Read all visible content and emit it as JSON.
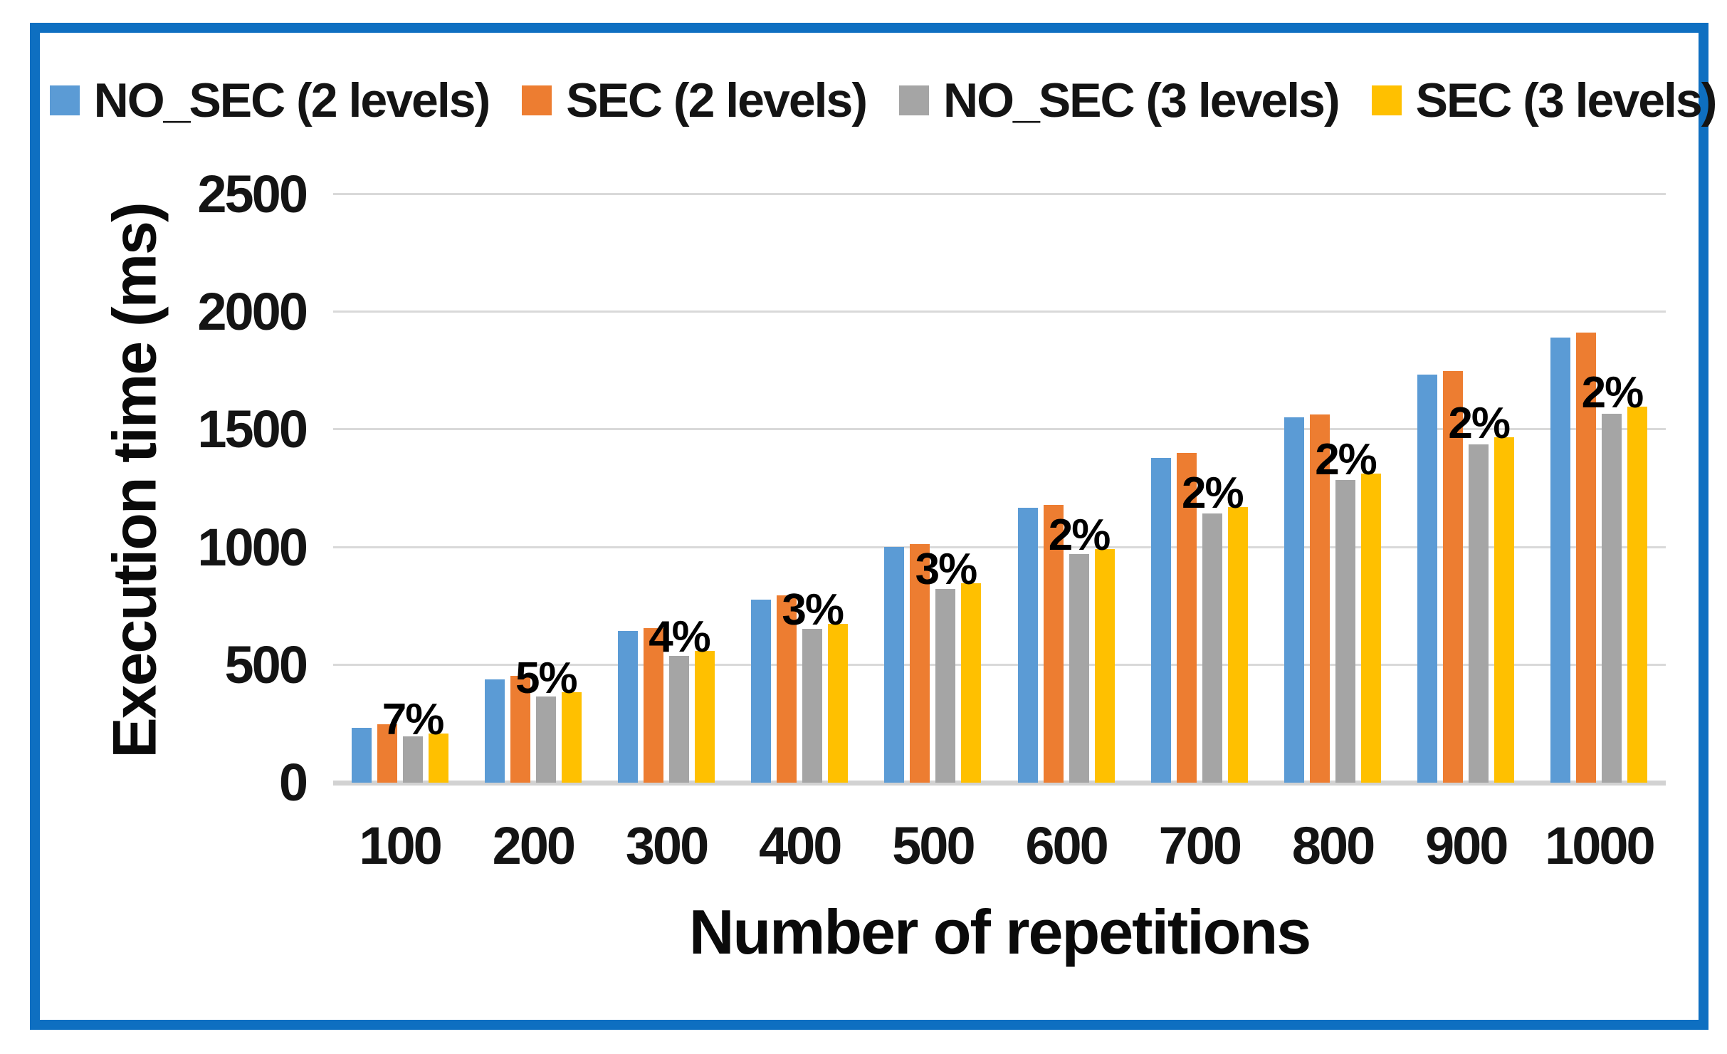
{
  "frame": {
    "border_color": "#0E6FC1"
  },
  "chart_data": {
    "type": "bar",
    "title": "",
    "xlabel": "Number of repetitions",
    "ylabel": "Execution time (ms)",
    "categories": [
      "100",
      "200",
      "300",
      "400",
      "500",
      "600",
      "700",
      "800",
      "900",
      "1000"
    ],
    "series": [
      {
        "name": "NO_SEC (2 levels)",
        "color": "#5B9BD5",
        "values": [
          232,
          440,
          645,
          778,
          1003,
          1168,
          1381,
          1552,
          1733,
          1891
        ]
      },
      {
        "name": "SEC (2 levels)",
        "color": "#ED7D31",
        "values": [
          248,
          455,
          657,
          797,
          1013,
          1180,
          1400,
          1565,
          1749,
          1912
        ]
      },
      {
        "name": "NO_SEC (3 levels)",
        "color": "#A5A5A5",
        "values": [
          196,
          367,
          538,
          655,
          823,
          973,
          1145,
          1286,
          1438,
          1567
        ]
      },
      {
        "name": "SEC (3 levels)",
        "color": "#FFC000",
        "values": [
          210,
          385,
          560,
          675,
          848,
          993,
          1170,
          1313,
          1468,
          1599
        ]
      }
    ],
    "bar_labels": {
      "anchor_series": "SEC (3 levels)",
      "values": [
        "7%",
        "5%",
        "4%",
        "3%",
        "3%",
        "2%",
        "2%",
        "2%",
        "2%",
        "2%"
      ]
    },
    "ylim": [
      0,
      2500
    ],
    "yticks": [
      0,
      500,
      1000,
      1500,
      2000,
      2500
    ],
    "grid": true,
    "legend_position": "top",
    "gridline_color": "#D9D9D9",
    "axis_line_color": "#D2D2D2"
  }
}
